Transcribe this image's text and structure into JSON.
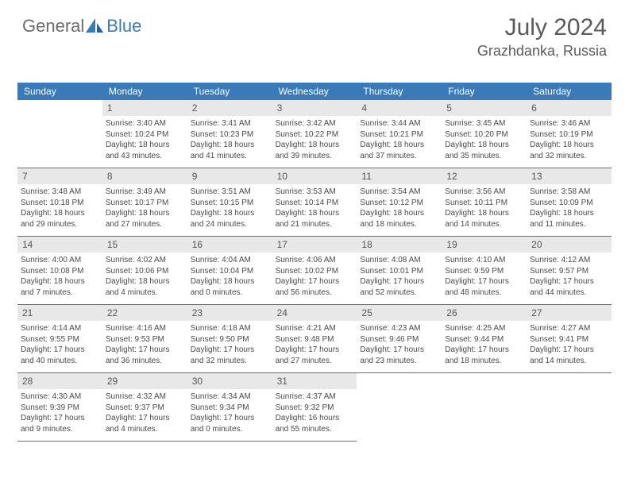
{
  "logo": {
    "text1": "General",
    "text2": "Blue"
  },
  "header": {
    "month": "July 2024",
    "location": "Grazhdanka, Russia"
  },
  "dayHeaders": [
    "Sunday",
    "Monday",
    "Tuesday",
    "Wednesday",
    "Thursday",
    "Friday",
    "Saturday"
  ],
  "colors": {
    "accent": "#3a7ab8",
    "grayText": "#5a5a5a",
    "cellBg": "#e8e8e8"
  },
  "cells": [
    {
      "blank": true
    },
    {
      "n": "1",
      "sr": "3:40 AM",
      "ss": "10:24 PM",
      "dl": "18 hours and 43 minutes."
    },
    {
      "n": "2",
      "sr": "3:41 AM",
      "ss": "10:23 PM",
      "dl": "18 hours and 41 minutes."
    },
    {
      "n": "3",
      "sr": "3:42 AM",
      "ss": "10:22 PM",
      "dl": "18 hours and 39 minutes."
    },
    {
      "n": "4",
      "sr": "3:44 AM",
      "ss": "10:21 PM",
      "dl": "18 hours and 37 minutes."
    },
    {
      "n": "5",
      "sr": "3:45 AM",
      "ss": "10:20 PM",
      "dl": "18 hours and 35 minutes."
    },
    {
      "n": "6",
      "sr": "3:46 AM",
      "ss": "10:19 PM",
      "dl": "18 hours and 32 minutes."
    },
    {
      "n": "7",
      "sr": "3:48 AM",
      "ss": "10:18 PM",
      "dl": "18 hours and 29 minutes."
    },
    {
      "n": "8",
      "sr": "3:49 AM",
      "ss": "10:17 PM",
      "dl": "18 hours and 27 minutes."
    },
    {
      "n": "9",
      "sr": "3:51 AM",
      "ss": "10:15 PM",
      "dl": "18 hours and 24 minutes."
    },
    {
      "n": "10",
      "sr": "3:53 AM",
      "ss": "10:14 PM",
      "dl": "18 hours and 21 minutes."
    },
    {
      "n": "11",
      "sr": "3:54 AM",
      "ss": "10:12 PM",
      "dl": "18 hours and 18 minutes."
    },
    {
      "n": "12",
      "sr": "3:56 AM",
      "ss": "10:11 PM",
      "dl": "18 hours and 14 minutes."
    },
    {
      "n": "13",
      "sr": "3:58 AM",
      "ss": "10:09 PM",
      "dl": "18 hours and 11 minutes."
    },
    {
      "n": "14",
      "sr": "4:00 AM",
      "ss": "10:08 PM",
      "dl": "18 hours and 7 minutes."
    },
    {
      "n": "15",
      "sr": "4:02 AM",
      "ss": "10:06 PM",
      "dl": "18 hours and 4 minutes."
    },
    {
      "n": "16",
      "sr": "4:04 AM",
      "ss": "10:04 PM",
      "dl": "18 hours and 0 minutes."
    },
    {
      "n": "17",
      "sr": "4:06 AM",
      "ss": "10:02 PM",
      "dl": "17 hours and 56 minutes."
    },
    {
      "n": "18",
      "sr": "4:08 AM",
      "ss": "10:01 PM",
      "dl": "17 hours and 52 minutes."
    },
    {
      "n": "19",
      "sr": "4:10 AM",
      "ss": "9:59 PM",
      "dl": "17 hours and 48 minutes."
    },
    {
      "n": "20",
      "sr": "4:12 AM",
      "ss": "9:57 PM",
      "dl": "17 hours and 44 minutes."
    },
    {
      "n": "21",
      "sr": "4:14 AM",
      "ss": "9:55 PM",
      "dl": "17 hours and 40 minutes."
    },
    {
      "n": "22",
      "sr": "4:16 AM",
      "ss": "9:53 PM",
      "dl": "17 hours and 36 minutes."
    },
    {
      "n": "23",
      "sr": "4:18 AM",
      "ss": "9:50 PM",
      "dl": "17 hours and 32 minutes."
    },
    {
      "n": "24",
      "sr": "4:21 AM",
      "ss": "9:48 PM",
      "dl": "17 hours and 27 minutes."
    },
    {
      "n": "25",
      "sr": "4:23 AM",
      "ss": "9:46 PM",
      "dl": "17 hours and 23 minutes."
    },
    {
      "n": "26",
      "sr": "4:25 AM",
      "ss": "9:44 PM",
      "dl": "17 hours and 18 minutes."
    },
    {
      "n": "27",
      "sr": "4:27 AM",
      "ss": "9:41 PM",
      "dl": "17 hours and 14 minutes."
    },
    {
      "n": "28",
      "sr": "4:30 AM",
      "ss": "9:39 PM",
      "dl": "17 hours and 9 minutes."
    },
    {
      "n": "29",
      "sr": "4:32 AM",
      "ss": "9:37 PM",
      "dl": "17 hours and 4 minutes."
    },
    {
      "n": "30",
      "sr": "4:34 AM",
      "ss": "9:34 PM",
      "dl": "17 hours and 0 minutes."
    },
    {
      "n": "31",
      "sr": "4:37 AM",
      "ss": "9:32 PM",
      "dl": "16 hours and 55 minutes."
    },
    {
      "blank": true,
      "noborder": true
    },
    {
      "blank": true,
      "noborder": true
    },
    {
      "blank": true,
      "noborder": true
    }
  ],
  "labels": {
    "sunrise": "Sunrise: ",
    "sunset": "Sunset: ",
    "daylight": "Daylight: "
  }
}
